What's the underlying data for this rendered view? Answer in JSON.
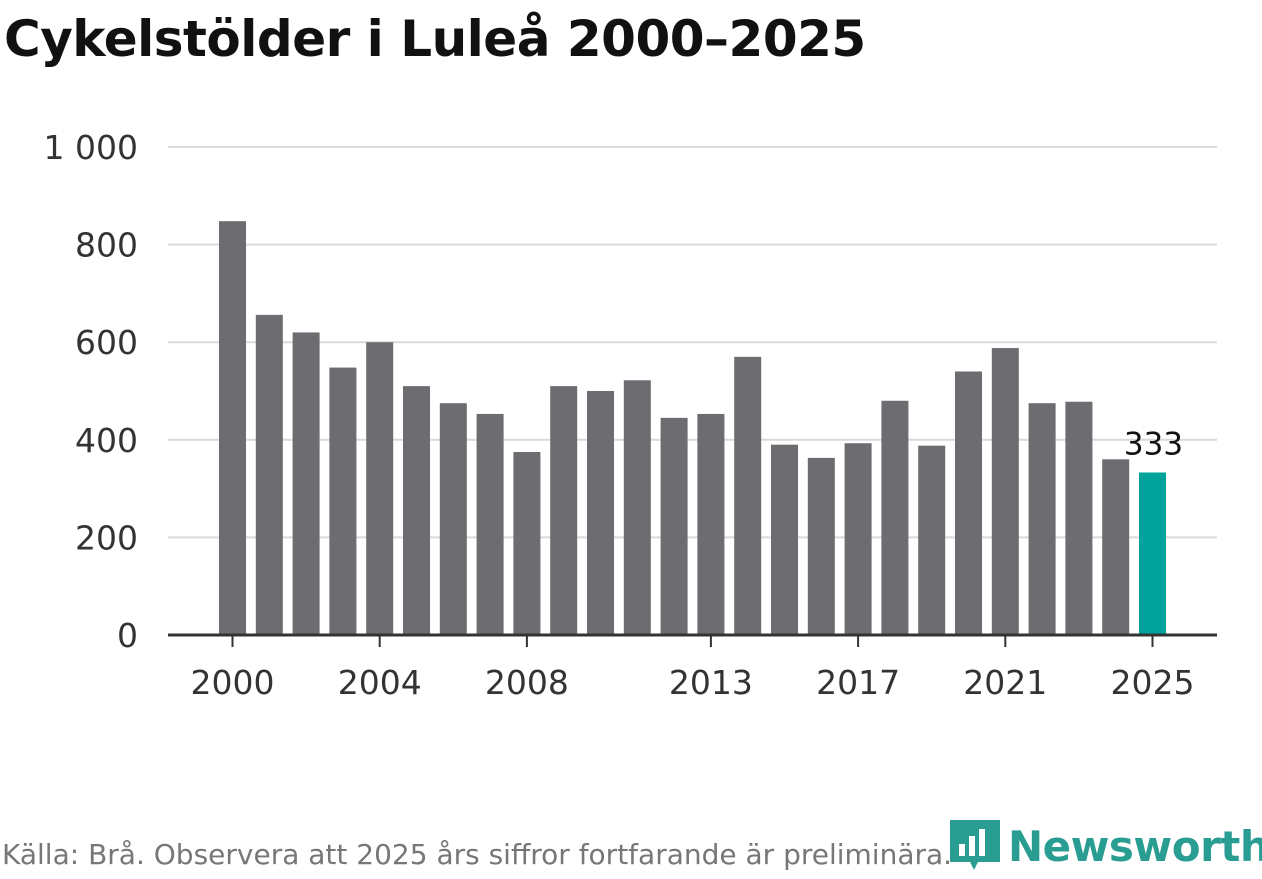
{
  "colors": {
    "bar": "#6d6c71",
    "highlight": "#00a39b",
    "grid": "#d9d9d9",
    "axis": "#333333",
    "logo": "#2a9d93"
  },
  "logo": {
    "text": "Newsworthy",
    "icon": "newsworthy-chart-icon"
  },
  "chart_data": {
    "type": "bar",
    "title": "Cykelstölder i Luleå 2000–2025",
    "xlabel": "",
    "ylabel": "",
    "ylim": [
      0,
      1000
    ],
    "yticks": [
      0,
      200,
      400,
      600,
      800,
      1000
    ],
    "ytick_labels": [
      "0",
      "200",
      "400",
      "600",
      "800",
      "1 000"
    ],
    "categories": [
      "2000",
      "2001",
      "2002",
      "2003",
      "2004",
      "2005",
      "2006",
      "2007",
      "2008",
      "2009",
      "2010",
      "2011",
      "2012",
      "2013",
      "2014",
      "2015",
      "2016",
      "2017",
      "2018",
      "2019",
      "2020",
      "2021",
      "2022",
      "2023",
      "2024",
      "2025"
    ],
    "values": [
      848,
      656,
      620,
      548,
      600,
      510,
      475,
      453,
      375,
      510,
      500,
      522,
      445,
      453,
      570,
      390,
      363,
      393,
      480,
      388,
      540,
      588,
      475,
      478,
      360,
      333
    ],
    "xtick_labels": [
      "2000",
      "2004",
      "2008",
      "2013",
      "2017",
      "2021",
      "2025"
    ],
    "highlight_category": "2025",
    "annotations": [
      {
        "category": "2025",
        "text": "333"
      }
    ],
    "grid": true,
    "source": "Källa: Brå. Observera att 2025 års siffror fortfarande är preliminära."
  }
}
